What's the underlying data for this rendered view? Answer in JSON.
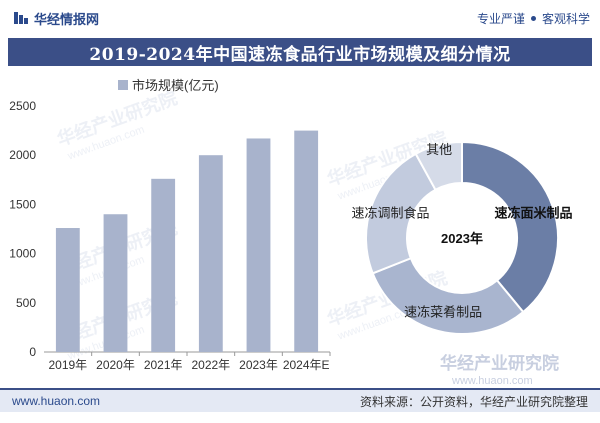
{
  "header": {
    "brand": "华经情报网",
    "slogan_left": "专业严谨",
    "slogan_right": "客观科学"
  },
  "title": "2019-2024年中国速冻食品行业市场规模及细分情况",
  "footer": {
    "url": "www.huaon.com",
    "source": "资料来源：公开资料，华经产业研究院整理"
  },
  "watermark": {
    "name": "华经产业研究院",
    "url": "www.huaon.com"
  },
  "colors": {
    "bar": "#a8b3cc",
    "header_band": "#3b4f87",
    "donut_main": "#6b7ea6",
    "donut_light": "#a9b5cf",
    "donut_lighter": "#c2cbde",
    "donut_lightest": "#d5dbe8"
  },
  "chart_data": [
    {
      "type": "bar",
      "legend": "市场规模(亿元)",
      "categories": [
        "2019年",
        "2020年",
        "2021年",
        "2022年",
        "2023年",
        "2024年E"
      ],
      "values": [
        1260,
        1400,
        1760,
        2000,
        2170,
        2250
      ],
      "ylim": [
        0,
        2500
      ],
      "yticks": [
        0,
        500,
        1000,
        1500,
        2000,
        2500
      ],
      "grid": false
    },
    {
      "type": "pie",
      "center_label": "2023年",
      "slices": [
        {
          "label": "速冻面米制品",
          "value": 39
        },
        {
          "label": "速冻菜肴制品",
          "value": 30
        },
        {
          "label": "速冻调制食品",
          "value": 23
        },
        {
          "label": "其他",
          "value": 8
        }
      ]
    }
  ]
}
